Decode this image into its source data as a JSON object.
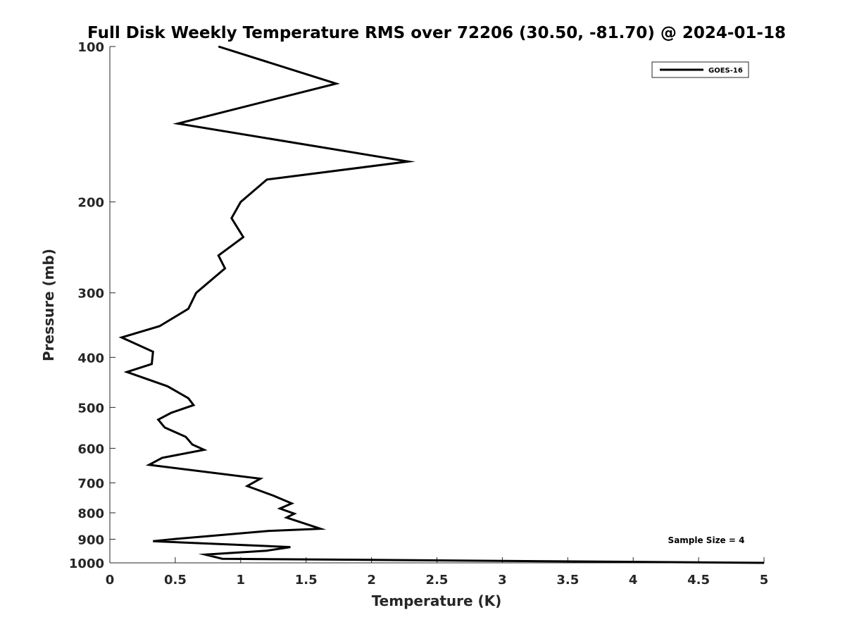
{
  "chart_data": {
    "type": "line",
    "title": "Full Disk Weekly Temperature RMS over 72206 (30.50, -81.70) @ 2024-01-18",
    "xlabel": "Temperature (K)",
    "ylabel": "Pressure (mb)",
    "xlim": [
      0,
      5
    ],
    "ylim": [
      100,
      1000
    ],
    "y_scale": "log",
    "y_reversed": true,
    "x_ticks": [
      "0",
      "0.5",
      "1",
      "1.5",
      "2",
      "2.5",
      "3",
      "3.5",
      "4",
      "4.5",
      "5"
    ],
    "y_ticks": [
      "100",
      "200",
      "300",
      "400",
      "500",
      "600",
      "700",
      "800",
      "900",
      "1000"
    ],
    "grid": false,
    "legend": {
      "placement": "top-right",
      "entries": [
        "GOES-16"
      ]
    },
    "annotation": "Sample Size = 4",
    "series": [
      {
        "name": "GOES-16",
        "color": "#000000",
        "points": [
          [
            0.83,
            100
          ],
          [
            1.73,
            118
          ],
          [
            0.52,
            141
          ],
          [
            2.28,
            167
          ],
          [
            1.2,
            181
          ],
          [
            1.0,
            200
          ],
          [
            0.93,
            215
          ],
          [
            1.02,
            234
          ],
          [
            0.83,
            254
          ],
          [
            0.88,
            269
          ],
          [
            0.66,
            300
          ],
          [
            0.6,
            322
          ],
          [
            0.38,
            348
          ],
          [
            0.09,
            366
          ],
          [
            0.33,
            390
          ],
          [
            0.32,
            412
          ],
          [
            0.13,
            427
          ],
          [
            0.44,
            455
          ],
          [
            0.6,
            480
          ],
          [
            0.64,
            495
          ],
          [
            0.47,
            512
          ],
          [
            0.37,
            528
          ],
          [
            0.42,
            547
          ],
          [
            0.58,
            570
          ],
          [
            0.63,
            590
          ],
          [
            0.72,
            604
          ],
          [
            0.4,
            626
          ],
          [
            0.3,
            646
          ],
          [
            1.15,
            687
          ],
          [
            1.05,
            710
          ],
          [
            1.25,
            741
          ],
          [
            1.39,
            767
          ],
          [
            1.3,
            785
          ],
          [
            1.41,
            803
          ],
          [
            1.35,
            817
          ],
          [
            1.61,
            859
          ],
          [
            1.22,
            867
          ],
          [
            0.52,
            898
          ],
          [
            0.33,
            908
          ],
          [
            1.38,
            932
          ],
          [
            1.2,
            947
          ],
          [
            0.73,
            964
          ],
          [
            0.86,
            982
          ],
          [
            5.0,
            1000
          ]
        ]
      }
    ]
  }
}
